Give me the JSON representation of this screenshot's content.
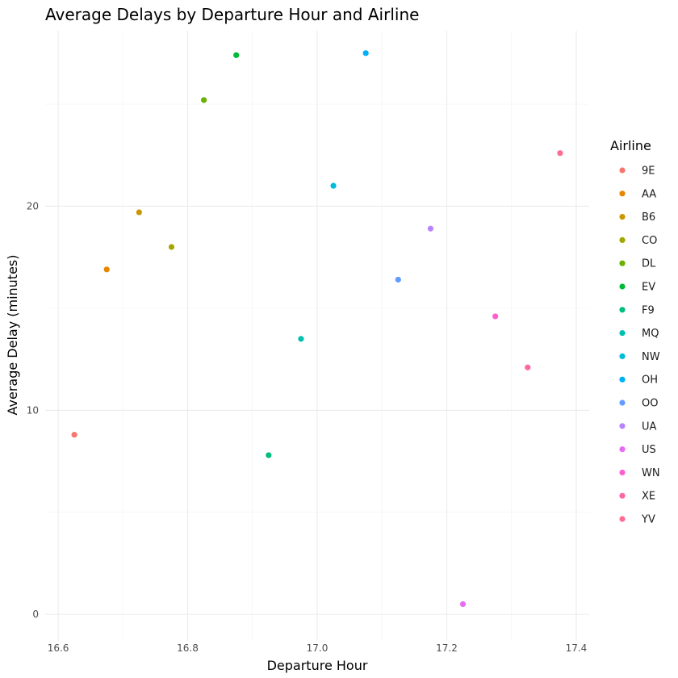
{
  "chart_data": {
    "type": "scatter",
    "title": "Average Delays by Departure Hour and Airline",
    "xlabel": "Departure Hour",
    "ylabel": "Average Delay (minutes)",
    "xlim": [
      16.58,
      17.42
    ],
    "ylim": [
      -1.3,
      28.6
    ],
    "x_ticks": [
      16.6,
      16.8,
      17.0,
      17.2,
      17.4
    ],
    "x_tick_labels": [
      "16.6",
      "16.8",
      "17.0",
      "17.2",
      "17.4"
    ],
    "x_minor_ticks": [
      16.7,
      16.9,
      17.1,
      17.3
    ],
    "y_ticks": [
      0,
      10,
      20
    ],
    "y_tick_labels": [
      "0",
      "10",
      "20"
    ],
    "y_minor_ticks": [
      5,
      15,
      25
    ],
    "grid": true,
    "legend": {
      "title": "Airline",
      "position": "right"
    },
    "series": [
      {
        "name": "9E",
        "color": "#F8766D",
        "x": 16.625,
        "y": 8.8
      },
      {
        "name": "AA",
        "color": "#E58700",
        "x": 16.675,
        "y": 16.9
      },
      {
        "name": "B6",
        "color": "#C99800",
        "x": 16.725,
        "y": 19.7
      },
      {
        "name": "CO",
        "color": "#A3A500",
        "x": 16.775,
        "y": 18.0
      },
      {
        "name": "DL",
        "color": "#6BB100",
        "x": 16.825,
        "y": 25.2
      },
      {
        "name": "EV",
        "color": "#00BA38",
        "x": 16.875,
        "y": 27.4
      },
      {
        "name": "F9",
        "color": "#00BF7D",
        "x": 16.925,
        "y": 7.8
      },
      {
        "name": "MQ",
        "color": "#00C0AF",
        "x": 16.975,
        "y": 13.5
      },
      {
        "name": "NW",
        "color": "#00BCD8",
        "x": 17.025,
        "y": 21.0
      },
      {
        "name": "OH",
        "color": "#00B0F6",
        "x": 17.075,
        "y": 27.5
      },
      {
        "name": "OO",
        "color": "#619CFF",
        "x": 17.125,
        "y": 16.4
      },
      {
        "name": "UA",
        "color": "#B983FF",
        "x": 17.175,
        "y": 18.9
      },
      {
        "name": "US",
        "color": "#E76BF3",
        "x": 17.225,
        "y": 0.5
      },
      {
        "name": "WN",
        "color": "#FD61D1",
        "x": 17.275,
        "y": 14.6
      },
      {
        "name": "XE",
        "color": "#FF67A4",
        "x": 17.325,
        "y": 12.1
      },
      {
        "name": "YV",
        "color": "#FF6C91",
        "x": 17.375,
        "y": 22.6
      }
    ]
  }
}
